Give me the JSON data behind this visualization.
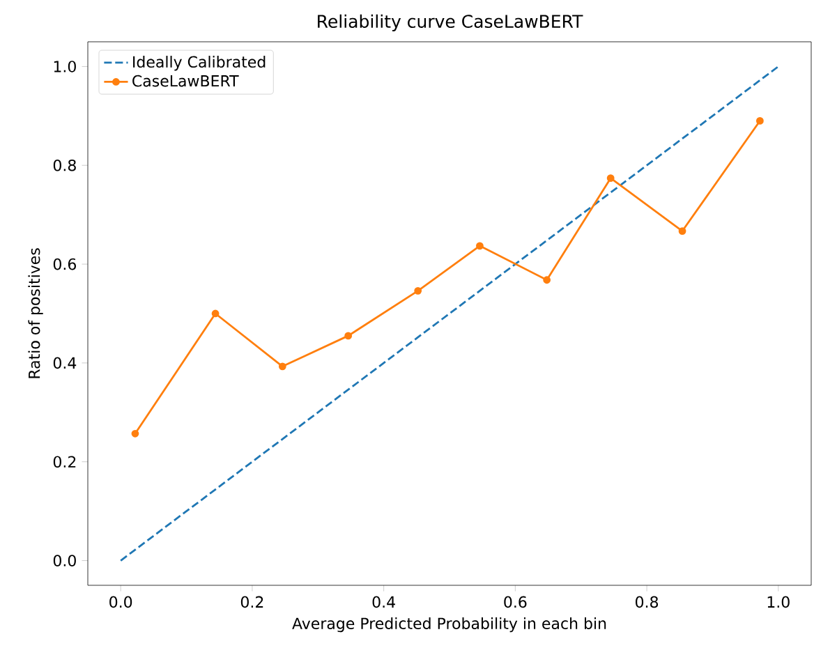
{
  "chart_data": {
    "type": "line",
    "title": "Reliability curve CaseLawBERT",
    "xlabel": "Average Predicted Probability in each bin",
    "ylabel": "Ratio of positives",
    "xlim": [
      -0.05,
      1.05
    ],
    "ylim": [
      -0.05,
      1.05
    ],
    "xticks": [
      {
        "value": 0,
        "label": "0.0"
      },
      0.2,
      0.4,
      0.6,
      0.8,
      {
        "value": 1,
        "label": "1.0"
      }
    ],
    "yticks": [
      {
        "value": 0,
        "label": "0.0"
      },
      0.2,
      0.4,
      0.6,
      0.8,
      {
        "value": 1,
        "label": "1.0"
      }
    ],
    "legend": "top left",
    "series": [
      {
        "name": "Ideally Calibrated",
        "color": "#1f77b4",
        "line_style": "dashed",
        "marker": "none",
        "x": [
          0,
          1
        ],
        "values": [
          0,
          1
        ]
      },
      {
        "name": "CaseLawBERT",
        "color": "#ff7f0e",
        "line_style": "solid",
        "marker": "circle",
        "x": [
          0.022,
          0.144,
          0.246,
          0.346,
          0.452,
          0.546,
          0.648,
          0.745,
          0.854,
          0.972
        ],
        "values": [
          0.257,
          0.5,
          0.393,
          0.455,
          0.546,
          0.637,
          0.568,
          0.774,
          0.667,
          0.89
        ]
      }
    ]
  }
}
